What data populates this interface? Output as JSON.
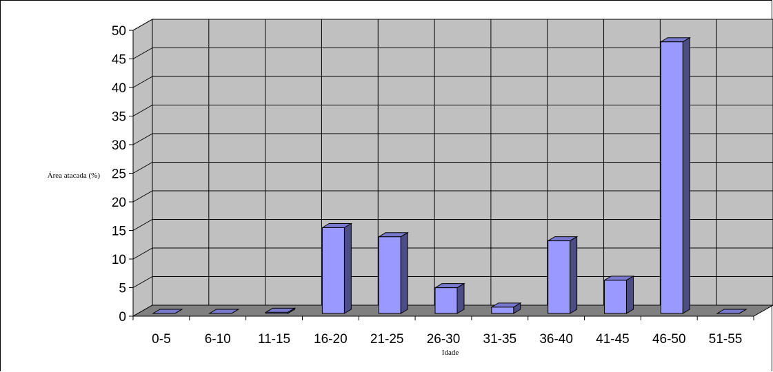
{
  "chart_data": {
    "type": "bar",
    "title": "",
    "xlabel": "Idade",
    "ylabel": "Área atacada (%)",
    "categories": [
      "0-5",
      "6-10",
      "11-15",
      "16-20",
      "21-25",
      "26-30",
      "31-35",
      "36-40",
      "41-45",
      "46-50",
      "51-55"
    ],
    "values": [
      0,
      0,
      0.2,
      15,
      13.4,
      4.5,
      1.1,
      12.7,
      5.8,
      47.5,
      0
    ],
    "ylim": [
      0,
      50
    ],
    "yticks": [
      "0",
      "5",
      "10",
      "15",
      "20",
      "25",
      "30",
      "35",
      "40",
      "45",
      "50"
    ],
    "grid": true,
    "legend": "none",
    "style": "3d-column",
    "colors": {
      "bar_front": "#9999ff",
      "bar_side": "#4d4d85",
      "bar_top": "#7878cc",
      "back_wall": "#c0c0c0",
      "floor": "#808080",
      "gridline": "#000000"
    }
  }
}
